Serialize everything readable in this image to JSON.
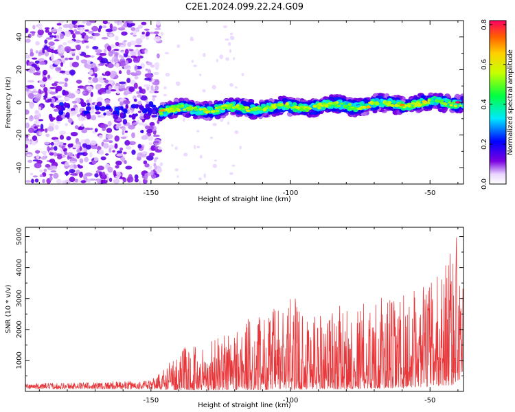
{
  "chart_data": [
    {
      "type": "heatmap",
      "title": "C2E1.2024.099.22.24.G09",
      "xlabel": "Height of straight line (km)",
      "ylabel": "Frequency (Hz)",
      "xlim": [
        -195,
        -38
      ],
      "ylim": [
        -50,
        50
      ],
      "xticks": [
        -150,
        -100,
        -50
      ],
      "yticks": [
        -40,
        -20,
        0,
        20,
        40
      ],
      "colorbar": {
        "label": "Normalized spectral amplitude",
        "range": [
          0,
          0.82
        ],
        "ticks": [
          0.0,
          0.2,
          0.4,
          0.6,
          0.8
        ],
        "colormap": "rainbow (violet → blue → cyan → green → yellow → orange → red)"
      },
      "regions": [
        {
          "x": [
            -195,
            -147
          ],
          "y": [
            -50,
            50
          ],
          "description": "broadband noise, low amplitude (~0.05–0.25)"
        },
        {
          "x": [
            -147,
            -38
          ],
          "y_center_start": -5,
          "y_center_end": 0,
          "band_halfwidth": 5,
          "description": "narrow signal band, amplitude ~0.2–0.8, peak near x=-39"
        }
      ]
    },
    {
      "type": "line",
      "xlabel": "Height of straight line (km)",
      "ylabel": "SNR (10 * v/v)",
      "xlim": [
        -195,
        -38
      ],
      "ylim": [
        0,
        5300
      ],
      "xticks": [
        -150,
        -100,
        -50
      ],
      "yticks": [
        1000,
        2000,
        3000,
        4000,
        5000
      ],
      "color": "#e8373a",
      "envelope": {
        "x": [
          -195,
          -170,
          -150,
          -146,
          -140,
          -130,
          -120,
          -110,
          -100,
          -90,
          -80,
          -70,
          -60,
          -55,
          -50,
          -45,
          -42,
          -40,
          -38
        ],
        "y_low": [
          80,
          80,
          70,
          60,
          50,
          40,
          50,
          50,
          60,
          80,
          80,
          100,
          100,
          150,
          150,
          200,
          200,
          300,
          700
        ],
        "y_high": [
          250,
          300,
          350,
          700,
          1400,
          1600,
          2300,
          2500,
          3100,
          2800,
          2800,
          3000,
          3100,
          3300,
          3600,
          4200,
          5250,
          5100,
          4000
        ]
      }
    }
  ]
}
